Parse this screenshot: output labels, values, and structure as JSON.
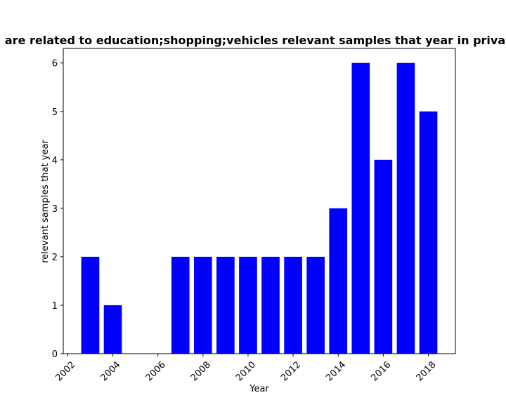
{
  "chart_data": {
    "type": "bar",
    "title": "are related to education;shopping;vehicles relevant samples that year in priva",
    "xlabel": "Year",
    "ylabel": "relevant samples that year",
    "x": [
      2003,
      2004,
      2005,
      2006,
      2007,
      2008,
      2009,
      2010,
      2011,
      2012,
      2013,
      2014,
      2015,
      2016,
      2017,
      2018
    ],
    "values": [
      2,
      1,
      0,
      0,
      2,
      2,
      2,
      2,
      2,
      2,
      2,
      3,
      6,
      4,
      6,
      5
    ],
    "xlim": [
      2001.8,
      2019.2
    ],
    "ylim": [
      0,
      6.3
    ],
    "xticks": [
      2002,
      2004,
      2006,
      2008,
      2010,
      2012,
      2014,
      2016,
      2018
    ],
    "yticks": [
      0,
      1,
      2,
      3,
      4,
      5,
      6
    ],
    "bar_color": "#0000ff",
    "grid": false
  }
}
